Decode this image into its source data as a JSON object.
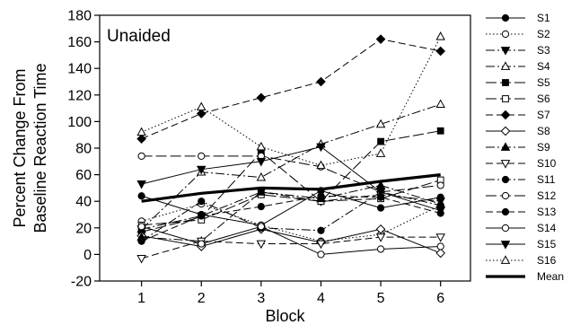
{
  "chart_data": {
    "type": "line",
    "panel_label": "Unaided",
    "xlabel": "Block",
    "ylabel_lines": [
      "Percent Change From",
      "Baseline Reaction Time"
    ],
    "x": [
      1,
      2,
      3,
      4,
      5,
      6
    ],
    "xlim": [
      0.3,
      6.5
    ],
    "ylim": [
      -20,
      180
    ],
    "yticks": [
      -20,
      0,
      20,
      40,
      60,
      80,
      100,
      120,
      140,
      160,
      180
    ],
    "grid": false,
    "legend_position": "right",
    "series": [
      {
        "name": "S1",
        "marker": "circle-filled",
        "dash": "solid",
        "values": [
          44,
          30,
          22,
          48,
          35,
          43
        ]
      },
      {
        "name": "S2",
        "marker": "circle-open",
        "dash": "dot",
        "values": [
          25,
          38,
          22,
          10,
          15,
          37
        ]
      },
      {
        "name": "S3",
        "marker": "triangle-down-filled",
        "dash": "dashdot",
        "values": [
          19,
          29,
          47,
          40,
          45,
          40
        ]
      },
      {
        "name": "S4",
        "marker": "triangle-up-open",
        "dash": "dashdot",
        "values": [
          19,
          62,
          58,
          83,
          98,
          113
        ]
      },
      {
        "name": "S5",
        "marker": "square-filled",
        "dash": "longdash",
        "values": [
          17,
          28,
          77,
          40,
          85,
          93
        ]
      },
      {
        "name": "S6",
        "marker": "square-open",
        "dash": "longdash",
        "values": [
          22,
          26,
          45,
          40,
          42,
          56
        ]
      },
      {
        "name": "S7",
        "marker": "diamond-filled",
        "dash": "dash",
        "values": [
          87,
          106,
          118,
          130,
          162,
          153
        ]
      },
      {
        "name": "S8",
        "marker": "diamond-open",
        "dash": "solid",
        "values": [
          14,
          6,
          19,
          9,
          19,
          1
        ]
      },
      {
        "name": "S9",
        "marker": "triangle-up-filled",
        "dash": "dashdot",
        "values": [
          13,
          10,
          47,
          42,
          52,
          38
        ]
      },
      {
        "name": "S10",
        "marker": "triangle-down-open",
        "dash": "dash",
        "values": [
          -3,
          10,
          8,
          8,
          13,
          13
        ]
      },
      {
        "name": "S11",
        "marker": "circle-filled",
        "dash": "dashdot",
        "values": [
          10,
          40,
          20,
          18,
          47,
          37
        ]
      },
      {
        "name": "S12",
        "marker": "circle-open",
        "dash": "longdash",
        "values": [
          74,
          74,
          74,
          66,
          47,
          52
        ]
      },
      {
        "name": "S13",
        "marker": "circle-filled",
        "dash": "dash",
        "values": [
          10,
          29,
          36,
          44,
          43,
          31
        ]
      },
      {
        "name": "S14",
        "marker": "circle-open",
        "dash": "solid",
        "values": [
          21,
          8,
          21,
          0,
          4,
          6
        ]
      },
      {
        "name": "S15",
        "marker": "triangle-down-filled",
        "dash": "solid",
        "values": [
          53,
          64,
          70,
          81,
          47,
          33
        ]
      },
      {
        "name": "S16",
        "marker": "triangle-up-open",
        "dash": "dot",
        "values": [
          92,
          111,
          81,
          67,
          76,
          164
        ]
      },
      {
        "name": "Mean",
        "marker": "none",
        "dash": "thick",
        "values": [
          40,
          46,
          50,
          49,
          55,
          60
        ]
      }
    ]
  }
}
